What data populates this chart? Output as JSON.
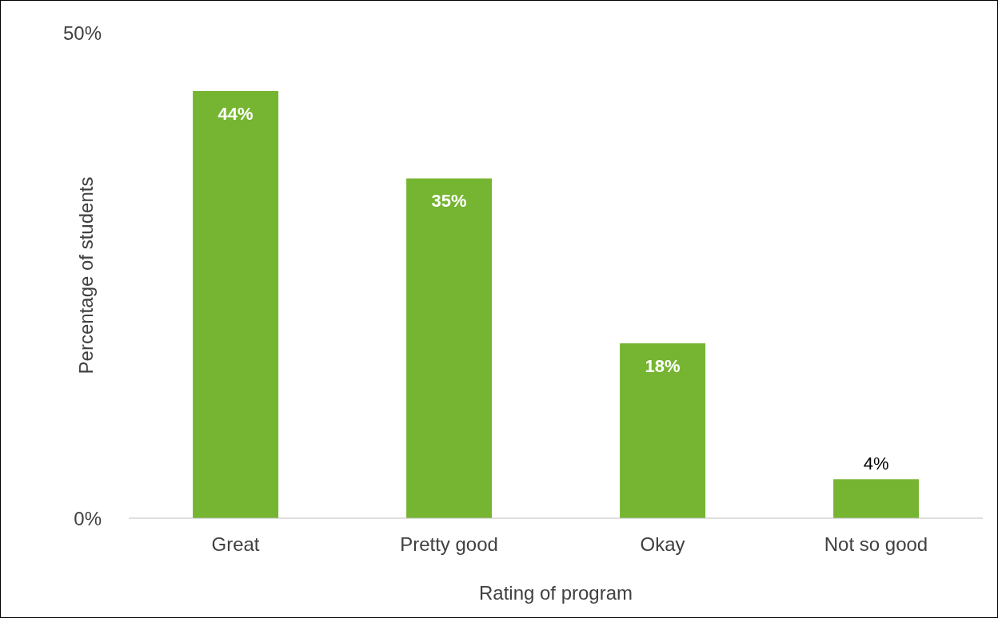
{
  "chart_data": {
    "type": "bar",
    "xlabel": "Rating of program",
    "ylabel": "Percentage of students",
    "categories": [
      "Great",
      "Pretty good",
      "Okay",
      "Not so good"
    ],
    "values": [
      44,
      35,
      18,
      4
    ],
    "value_labels": [
      "44%",
      "35%",
      "18%",
      "4%"
    ],
    "color": "#76b531",
    "ylim": [
      0,
      50
    ],
    "yticks": [
      {
        "value": 0,
        "label": "0%"
      },
      {
        "value": 50,
        "label": "50%"
      }
    ],
    "grid": false,
    "legend": false
  }
}
